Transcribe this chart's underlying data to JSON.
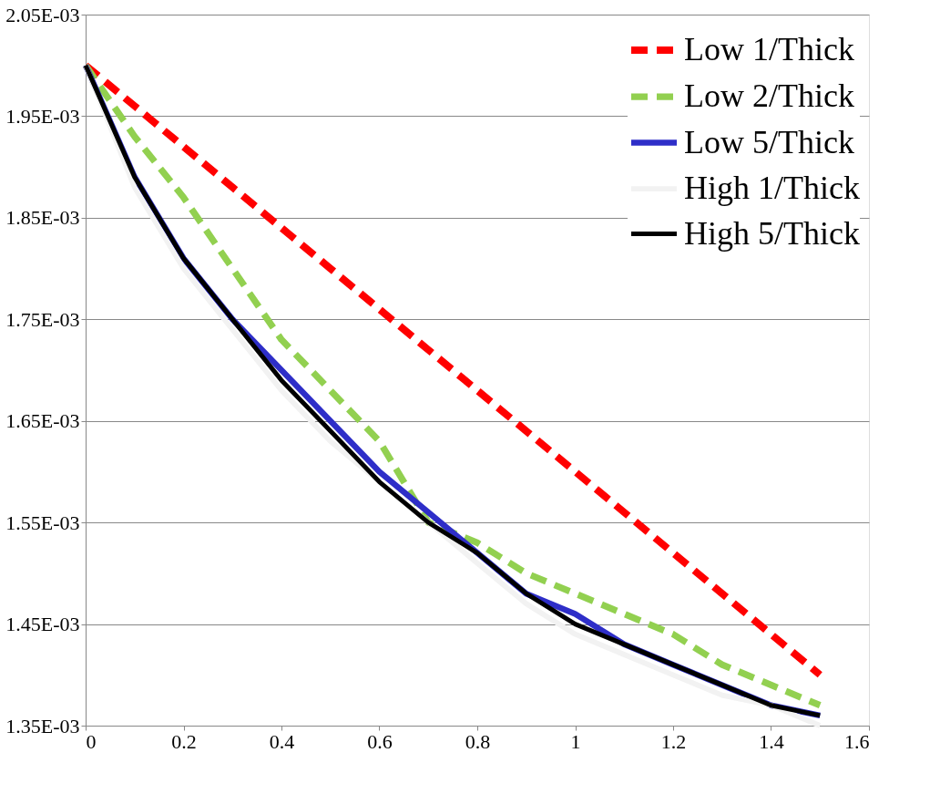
{
  "chart_data": {
    "type": "line",
    "x": [
      0,
      0.1,
      0.2,
      0.3,
      0.4,
      0.5,
      0.6,
      0.7,
      0.8,
      0.9,
      1.0,
      1.1,
      1.2,
      1.3,
      1.4,
      1.5
    ],
    "series": [
      {
        "name": "Low 1/Thick",
        "color": "#ff0000",
        "line_style": "dashed",
        "values": [
          0.002,
          0.00196,
          0.00192,
          0.00188,
          0.00184,
          0.0018,
          0.00176,
          0.00172,
          0.00168,
          0.00164,
          0.0016,
          0.00156,
          0.00152,
          0.00148,
          0.00144,
          0.0014
        ]
      },
      {
        "name": "Low 2/Thick",
        "color": "#92d050",
        "line_style": "dashed",
        "values": [
          0.002,
          0.00193,
          0.00187,
          0.0018,
          0.00173,
          0.00168,
          0.00163,
          0.00155,
          0.00153,
          0.0015,
          0.00148,
          0.00146,
          0.00144,
          0.00141,
          0.00139,
          0.00137
        ]
      },
      {
        "name": "Low 5/Thick",
        "color": "#2e2ec8",
        "line_style": "solid",
        "values": [
          0.002,
          0.00189,
          0.00181,
          0.00175,
          0.0017,
          0.00165,
          0.0016,
          0.00156,
          0.00152,
          0.00148,
          0.00146,
          0.00143,
          0.00141,
          0.00139,
          0.00137,
          0.00136
        ]
      },
      {
        "name": "High 1/Thick",
        "color": "#f2f2f2",
        "line_style": "solid",
        "values": [
          0.002,
          0.00188,
          0.0018,
          0.00174,
          0.00168,
          0.00163,
          0.00159,
          0.00155,
          0.00151,
          0.00147,
          0.00144,
          0.00142,
          0.0014,
          0.00138,
          0.00137,
          0.00135
        ]
      },
      {
        "name": "High 5/Thick",
        "color": "#000000",
        "line_style": "solid",
        "values": [
          0.002,
          0.00189,
          0.00181,
          0.00175,
          0.00169,
          0.00164,
          0.00159,
          0.00155,
          0.00152,
          0.00148,
          0.00145,
          0.00143,
          0.00141,
          0.00139,
          0.00137,
          0.00136
        ]
      }
    ],
    "xlim": [
      0,
      1.6
    ],
    "xticks": [
      0,
      0.2,
      0.4,
      0.6,
      0.8,
      1,
      1.2,
      1.4,
      1.6
    ],
    "ylim": [
      0.00135,
      0.00205
    ],
    "yticks": [
      {
        "value": 0.00135,
        "label": "1.35E-03"
      },
      {
        "value": 0.00145,
        "label": "1.45E-03"
      },
      {
        "value": 0.00155,
        "label": "1.55E-03"
      },
      {
        "value": 0.00165,
        "label": "1.65E-03"
      },
      {
        "value": 0.00175,
        "label": "1.75E-03"
      },
      {
        "value": 0.00185,
        "label": "1.85E-03"
      },
      {
        "value": 0.00195,
        "label": "1.95E-03"
      },
      {
        "value": 0.00205,
        "label": "2.05E-03"
      }
    ],
    "grid": "y",
    "legend": "top right",
    "marker": "none"
  }
}
